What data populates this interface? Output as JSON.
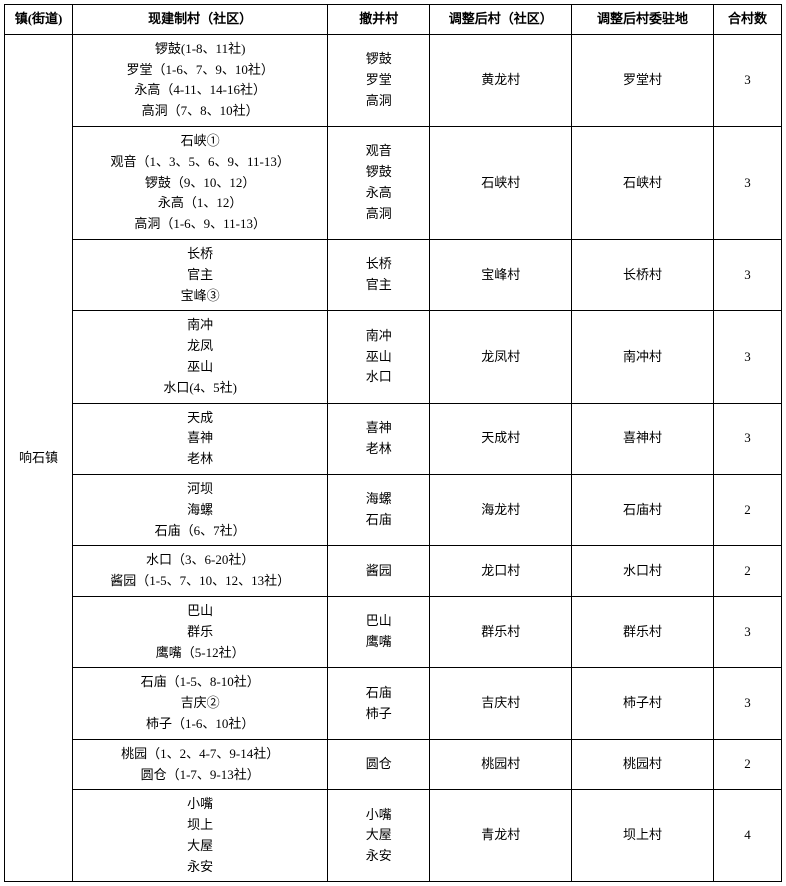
{
  "headers": {
    "town": "镇(街道)",
    "current": "现建制村（社区）",
    "merge": "撤并村",
    "after": "调整后村（社区）",
    "seat": "调整后村委驻地",
    "count": "合村数"
  },
  "town_name": "响石镇",
  "rows": [
    {
      "current": "锣鼓(1-8、11社)\n罗堂（1-6、7、9、10社）\n永高（4-11、14-16社）\n高洞（7、8、10社）",
      "merge": "锣鼓\n罗堂\n高洞",
      "after": "黄龙村",
      "seat": "罗堂村",
      "count": "3"
    },
    {
      "current": "石峡①\n观音（1、3、5、6、9、11-13）\n锣鼓（9、10、12）\n永高（1、12）\n高洞（1-6、9、11-13）",
      "merge": "观音\n锣鼓\n永高\n高洞",
      "after": "石峡村",
      "seat": "石峡村",
      "count": "3"
    },
    {
      "current": "长桥\n官主\n宝峰③",
      "merge": "长桥\n官主",
      "after": "宝峰村",
      "seat": "长桥村",
      "count": "3"
    },
    {
      "current": "南冲\n龙凤\n巫山\n水口(4、5社)",
      "merge": "南冲\n巫山\n水口",
      "after": "龙凤村",
      "seat": "南冲村",
      "count": "3"
    },
    {
      "current": "天成\n喜神\n老林",
      "merge": "喜神\n老林",
      "after": "天成村",
      "seat": "喜神村",
      "count": "3"
    },
    {
      "current": "河坝\n海螺\n石庙（6、7社）",
      "merge": "海螺\n石庙",
      "after": "海龙村",
      "seat": "石庙村",
      "count": "2"
    },
    {
      "current": "水口（3、6-20社）\n酱园（1-5、7、10、12、13社）",
      "merge": "酱园",
      "after": "龙口村",
      "seat": "水口村",
      "count": "2"
    },
    {
      "current": "巴山\n群乐\n鹰嘴（5-12社）",
      "merge": "巴山\n鹰嘴",
      "after": "群乐村",
      "seat": "群乐村",
      "count": "3"
    },
    {
      "current": "石庙（1-5、8-10社）\n吉庆②\n柿子（1-6、10社）",
      "merge": "石庙\n柿子",
      "after": "吉庆村",
      "seat": "柿子村",
      "count": "3"
    },
    {
      "current": "桃园（1、2、4-7、9-14社）\n圆仓（1-7、9-13社）",
      "merge": "圆仓",
      "after": "桃园村",
      "seat": "桃园村",
      "count": "2"
    },
    {
      "current": "小嘴\n坝上\n大屋\n永安",
      "merge": "小嘴\n大屋\n永安",
      "after": "青龙村",
      "seat": "坝上村",
      "count": "4"
    }
  ]
}
